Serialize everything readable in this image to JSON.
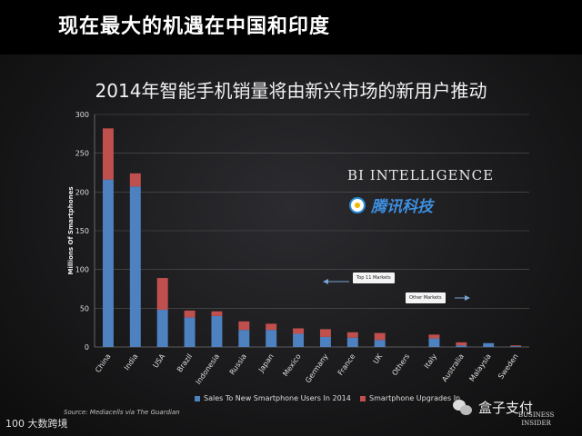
{
  "heading": "现在最大的机遇在中国和印度",
  "chart_data": {
    "type": "bar",
    "stacked": true,
    "title": "2014年智能手机销量将由新兴市场的新用户推动",
    "ylabel": "Millions Of Smartphones",
    "xlabel": "",
    "ylim": [
      0,
      300
    ],
    "yticks": [
      0,
      50,
      100,
      150,
      200,
      250,
      300
    ],
    "grid": true,
    "legend_position": "bottom",
    "categories": [
      "China",
      "India",
      "USA",
      "Brazil",
      "Indonesia",
      "Russia",
      "Japan",
      "Mexico",
      "Germany",
      "France",
      "UK",
      "Others",
      "Italy",
      "Australia",
      "Malaysia",
      "Sweden"
    ],
    "series": [
      {
        "name": "Sales To New Smartphone Users In 2014",
        "color": "#4e81c0",
        "values": [
          216,
          207,
          48,
          38,
          40,
          22,
          22,
          17,
          13,
          12,
          9,
          0,
          11,
          2,
          5,
          1
        ]
      },
      {
        "name": "Smartphone Upgrades In",
        "color": "#c0504d",
        "values": [
          66,
          17,
          41,
          9,
          6,
          11,
          8,
          7,
          10,
          7,
          9,
          0,
          5,
          4,
          0,
          1
        ]
      }
    ]
  },
  "annotations": {
    "top_markets": "Top 11 Markets",
    "other_markets": "Other Markets"
  },
  "branding": {
    "bi_intelligence": "BI INTELLIGENCE",
    "tencent": "腾讯科技",
    "source": "Source: Mediacells via The Guardian",
    "bottom_logo": "100 大数跨境",
    "wechat_name": "盒子支付",
    "bi_corner_1": "BUSINESS",
    "bi_corner_2": "INSIDER"
  }
}
